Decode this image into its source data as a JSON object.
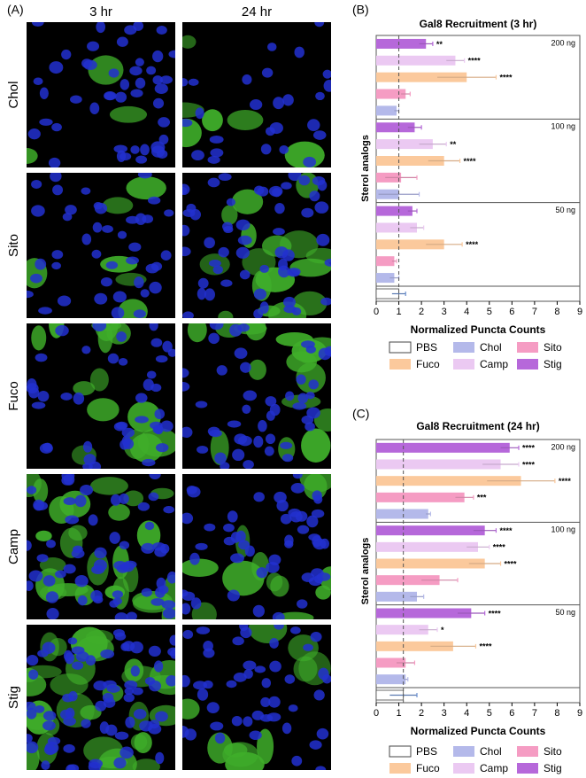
{
  "panel_a": {
    "label": "(A)",
    "columns": [
      "3 hr",
      "24 hr"
    ],
    "rows": [
      "Chol",
      "Sito",
      "Fuco",
      "Camp",
      "Stig"
    ]
  },
  "chart_data": [
    {
      "type": "bar",
      "panel": "(B)",
      "title": "Gal8 Recruitment (3 hr)",
      "xlabel": "Normalized Puncta Counts",
      "ylabel": "Sterol analogs",
      "orientation": "horizontal",
      "categories": [
        "200 ng",
        "100 ng",
        "50 ng",
        null
      ],
      "xlim": [
        0,
        9
      ],
      "xticks": [
        0,
        1,
        2,
        3,
        4,
        5,
        6,
        7,
        8,
        9
      ],
      "reference_line": 1.0,
      "series": [
        {
          "name": "PBS",
          "color": "#ffffff",
          "values": [
            null,
            null,
            null,
            1.0
          ],
          "errors": [
            null,
            null,
            null,
            0.3
          ],
          "stars": [
            null,
            null,
            null,
            null
          ]
        },
        {
          "name": "Chol",
          "color": "#b4b9ea",
          "values": [
            0.9,
            1.0,
            0.8,
            null
          ],
          "errors": [
            0.1,
            0.9,
            0.2,
            null
          ],
          "stars": [
            null,
            null,
            null,
            null
          ]
        },
        {
          "name": "Sito",
          "color": "#f59cc3",
          "values": [
            1.3,
            1.1,
            0.8,
            null
          ],
          "errors": [
            0.2,
            0.7,
            0.1,
            null
          ],
          "stars": [
            null,
            null,
            null,
            null
          ]
        },
        {
          "name": "Fuco",
          "color": "#fbc99c",
          "values": [
            4.0,
            3.0,
            3.0,
            null
          ],
          "errors": [
            1.3,
            0.7,
            0.8,
            null
          ],
          "stars": [
            "****",
            "****",
            "****",
            null
          ]
        },
        {
          "name": "Camp",
          "color": "#ebc9f2",
          "values": [
            3.5,
            2.5,
            1.8,
            null
          ],
          "errors": [
            0.4,
            0.6,
            0.3,
            null
          ],
          "stars": [
            "****",
            "**",
            null,
            null
          ]
        },
        {
          "name": "Stig",
          "color": "#b668da",
          "values": [
            2.2,
            1.7,
            1.6,
            null
          ],
          "errors": [
            0.3,
            0.3,
            0.2,
            null
          ],
          "stars": [
            "**",
            null,
            null,
            null
          ]
        }
      ]
    },
    {
      "type": "bar",
      "panel": "(C)",
      "title": "Gal8 Recruitment (24 hr)",
      "xlabel": "Normalized Puncta Counts",
      "ylabel": "Sterol analogs",
      "orientation": "horizontal",
      "categories": [
        "200 ng",
        "100 ng",
        "50 ng",
        null
      ],
      "xlim": [
        0,
        9
      ],
      "xticks": [
        0,
        1,
        2,
        3,
        4,
        5,
        6,
        7,
        8,
        9
      ],
      "reference_line": 1.2,
      "series": [
        {
          "name": "PBS",
          "color": "#ffffff",
          "values": [
            null,
            null,
            null,
            1.2
          ],
          "errors": [
            null,
            null,
            null,
            0.6
          ],
          "stars": [
            null,
            null,
            null,
            null
          ]
        },
        {
          "name": "Chol",
          "color": "#b4b9ea",
          "values": [
            2.3,
            1.8,
            1.3,
            null
          ],
          "errors": [
            0.1,
            0.3,
            0.1,
            null
          ],
          "stars": [
            null,
            null,
            null,
            null
          ]
        },
        {
          "name": "Sito",
          "color": "#f59cc3",
          "values": [
            3.9,
            2.8,
            1.3,
            null
          ],
          "errors": [
            0.4,
            0.8,
            0.4,
            null
          ],
          "stars": [
            "***",
            null,
            null,
            null
          ]
        },
        {
          "name": "Fuco",
          "color": "#fbc99c",
          "values": [
            6.4,
            4.8,
            3.4,
            null
          ],
          "errors": [
            1.5,
            0.7,
            1.0,
            null
          ],
          "stars": [
            "****",
            "****",
            "****",
            null
          ]
        },
        {
          "name": "Camp",
          "color": "#ebc9f2",
          "values": [
            5.5,
            4.5,
            2.3,
            null
          ],
          "errors": [
            0.8,
            0.5,
            0.4,
            null
          ],
          "stars": [
            "****",
            "****",
            "*",
            null
          ]
        },
        {
          "name": "Stig",
          "color": "#b668da",
          "values": [
            5.9,
            4.8,
            4.2,
            null
          ],
          "errors": [
            0.4,
            0.5,
            0.6,
            null
          ],
          "stars": [
            "****",
            "****",
            "****",
            null
          ]
        }
      ]
    }
  ]
}
